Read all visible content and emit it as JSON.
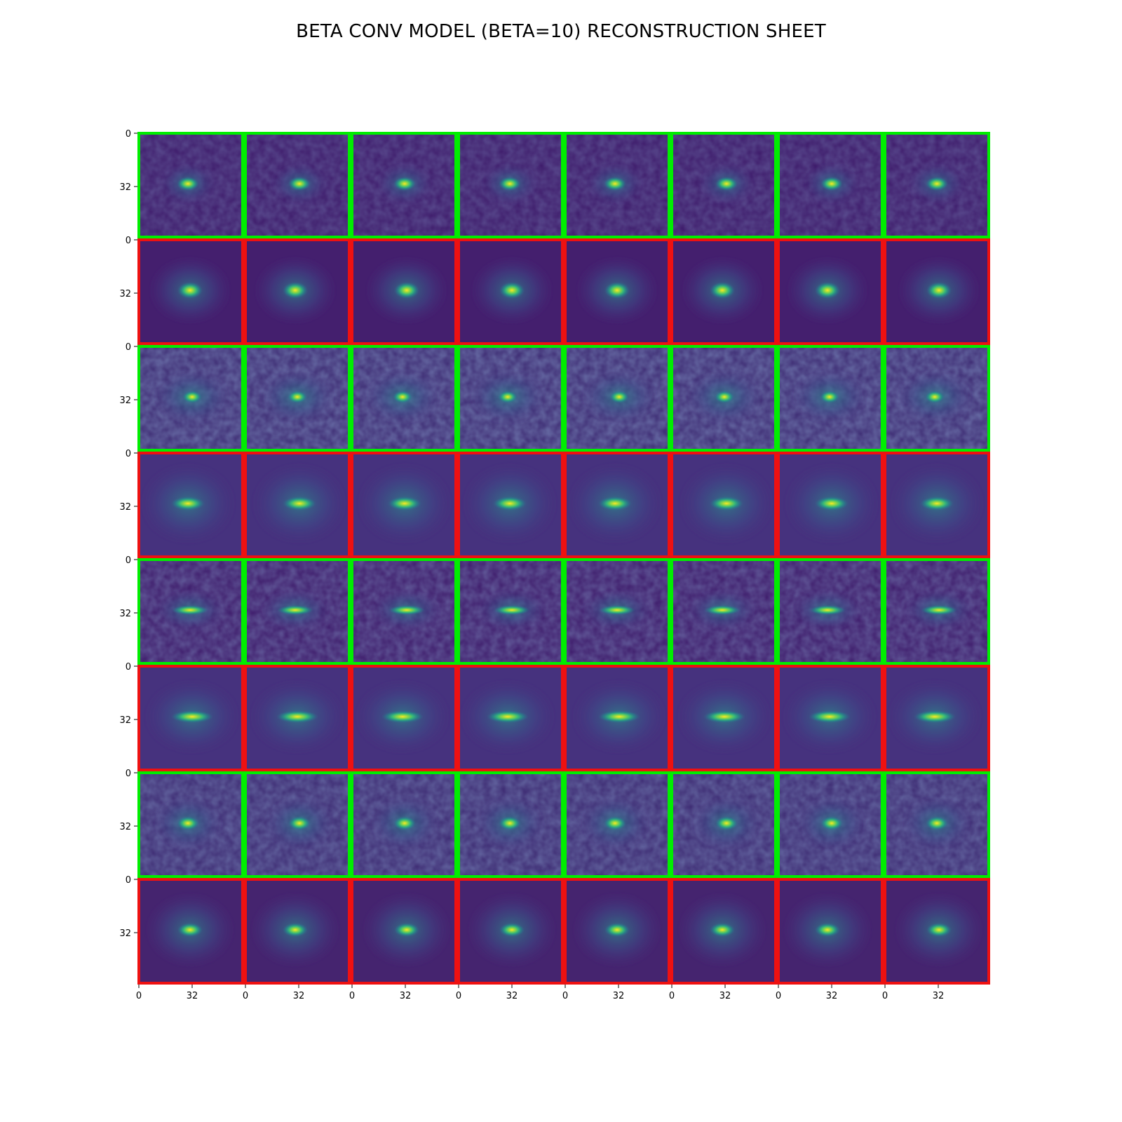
{
  "title": "BETA CONV MODEL (BETA=10) RECONSTRUCTION SHEET",
  "grid": {
    "rows": 8,
    "cols": 8,
    "row_roles": [
      "input",
      "reconstruction",
      "input",
      "reconstruction",
      "input",
      "reconstruction",
      "input",
      "reconstruction"
    ],
    "tile_ticks": [
      "0",
      "32"
    ],
    "border_colors": {
      "input": "#00ee00",
      "reconstruction": "#ee1111"
    }
  },
  "colormap": [
    "#440154",
    "#3b528b",
    "#21918c",
    "#5ec962",
    "#fde725"
  ]
}
